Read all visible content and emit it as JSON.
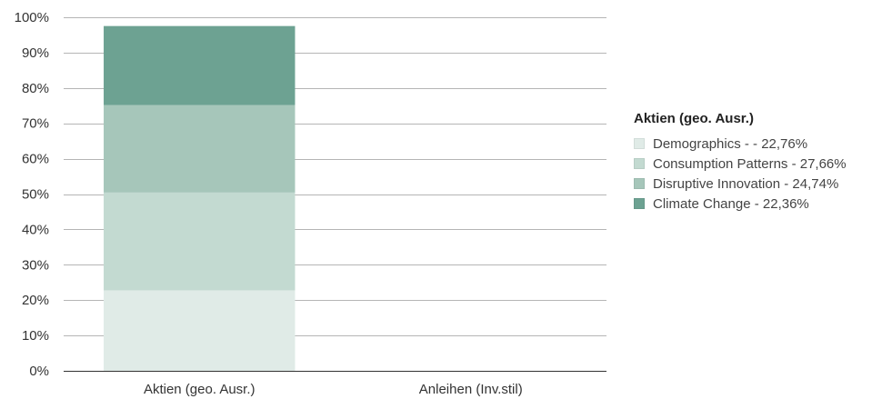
{
  "chart_data": {
    "type": "bar",
    "stacked": true,
    "categories": [
      "Aktien (geo. Ausr.)",
      "Anleihen (Inv.stil)"
    ],
    "series": [
      {
        "name": "Demographics - - 22,76%",
        "values": [
          22.76,
          0
        ],
        "color": "#e0ebe7"
      },
      {
        "name": "Consumption Patterns - 27,66%",
        "values": [
          27.66,
          0
        ],
        "color": "#c3dad1"
      },
      {
        "name": "Disruptive Innovation - 24,74%",
        "values": [
          24.74,
          0
        ],
        "color": "#a6c6ba"
      },
      {
        "name": "Climate Change - 22,36%",
        "values": [
          22.36,
          0
        ],
        "color": "#6da292"
      }
    ],
    "ylim": [
      0,
      100
    ],
    "yticks": [
      "0%",
      "10%",
      "20%",
      "30%",
      "40%",
      "50%",
      "60%",
      "70%",
      "80%",
      "90%",
      "100%"
    ],
    "grid": true,
    "legend_title": "Aktien (geo. Ausr.)",
    "legend_position": "right"
  }
}
